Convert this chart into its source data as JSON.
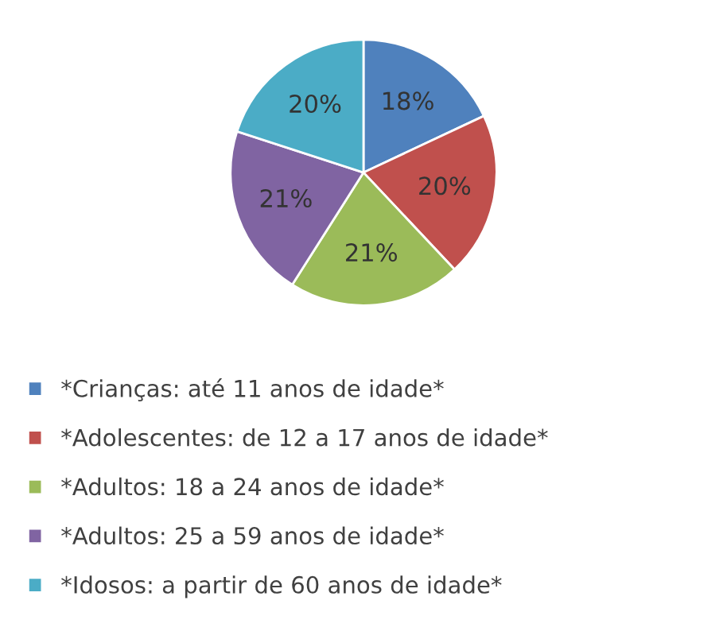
{
  "chart_data": {
    "type": "pie",
    "categories": [
      "*Crianças: até 11 anos de idade*",
      "*Adolescentes: de 12 a 17 anos de idade*",
      "*Adultos: 18 a 24 anos de idade*",
      "*Adultos: 25 a 59 anos de idade*",
      "*Idosos: a partir de 60 anos de idade*"
    ],
    "values": [
      18,
      20,
      21,
      21,
      20
    ],
    "value_labels": [
      "18%",
      "20%",
      "21%",
      "21%",
      "20%"
    ],
    "colors": [
      "#4f81bd",
      "#c0504d",
      "#9bbb59",
      "#8064a2",
      "#4bacc6"
    ],
    "legend": "bottom"
  }
}
